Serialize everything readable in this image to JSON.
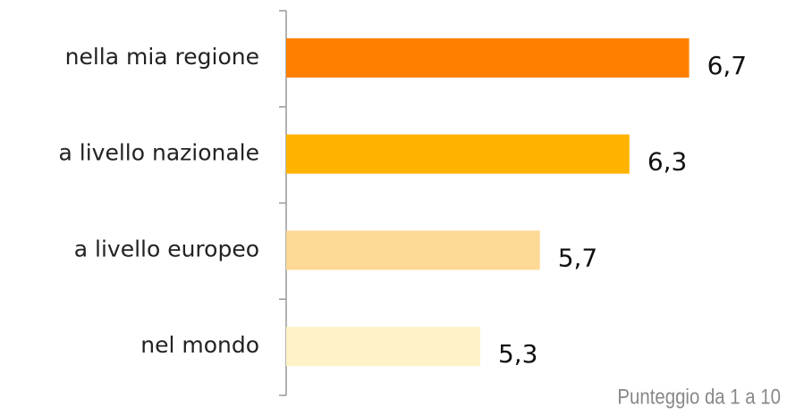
{
  "chart_data": {
    "type": "bar",
    "orientation": "horizontal",
    "categories": [
      "nella mia regione",
      "a livello nazionale",
      "a livello europeo",
      "nel mondo"
    ],
    "values": [
      6.7,
      6.3,
      5.7,
      5.3
    ],
    "value_labels": [
      "6,7",
      "6,3",
      "5,7",
      "5,3"
    ],
    "colors": [
      "#ff7f00",
      "#ffb300",
      "#fdd995",
      "#fff2c6"
    ],
    "xlim": [
      4,
      7.2
    ],
    "note": "Punteggio da 1 a 10"
  }
}
